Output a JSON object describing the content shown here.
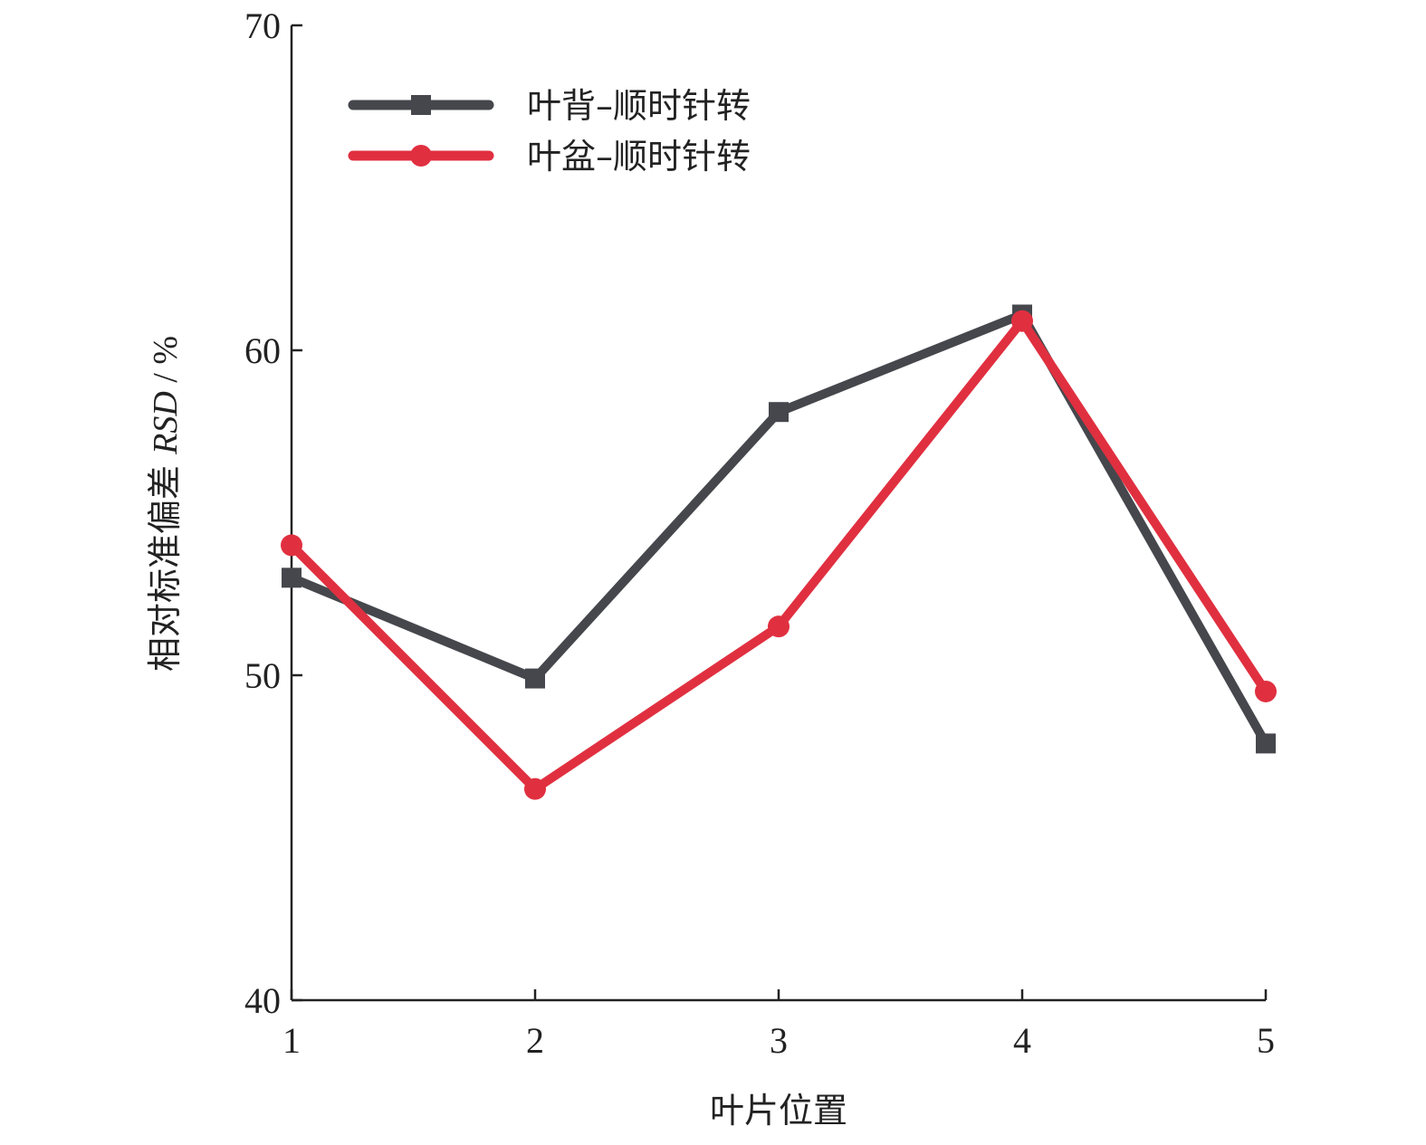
{
  "chart_data": {
    "type": "line",
    "x": [
      1,
      2,
      3,
      4,
      5
    ],
    "xlabel": "叶片位置",
    "ylabel": {
      "prefix": "相对标准偏差 ",
      "italic": "RSD",
      "suffix": " / %"
    },
    "xlim": [
      1,
      5
    ],
    "ylim": [
      40,
      70
    ],
    "xticks": [
      "1",
      "2",
      "3",
      "4",
      "5"
    ],
    "yticks": [
      "40",
      "50",
      "60",
      "70"
    ],
    "grid": false,
    "legend_position": "top-left",
    "series": [
      {
        "name": "叶背–顺时针转",
        "color": "#45474c",
        "marker": "square",
        "values": [
          53.0,
          49.9,
          58.1,
          61.1,
          47.9
        ]
      },
      {
        "name": "叶盆–顺时针转",
        "color": "#e03040",
        "marker": "circle",
        "values": [
          54.0,
          46.5,
          51.5,
          60.9,
          49.5
        ]
      }
    ]
  }
}
